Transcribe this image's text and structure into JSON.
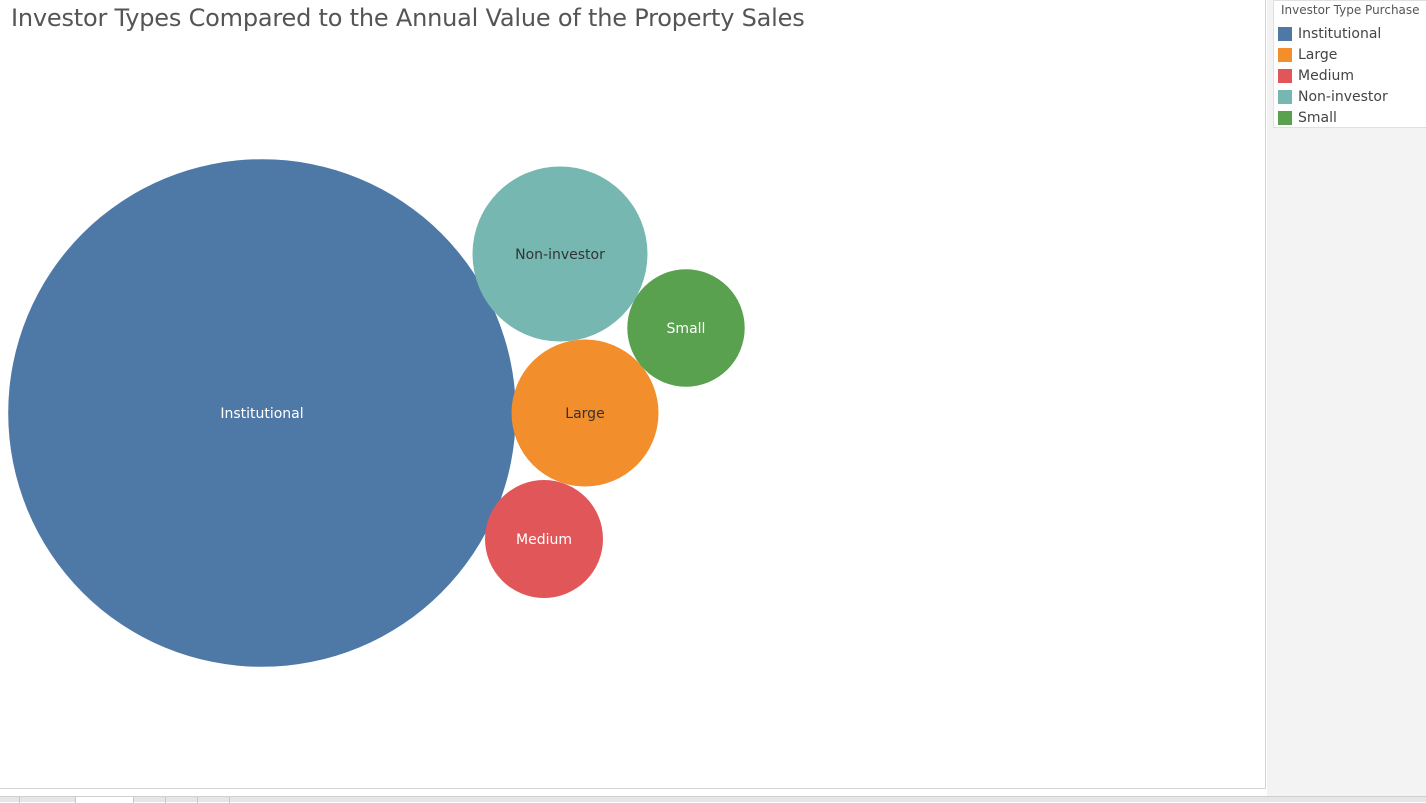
{
  "chart_data": {
    "type": "bubble",
    "title": "Investor Types Compared to the Annual Value of the Property Sales",
    "legend_title": "Investor Type Purchase",
    "legend_placement": "right",
    "series": [
      {
        "name": "Institutional",
        "color": "#4e79a7",
        "label_color": "#ffffff",
        "relative_size": 18.5
      },
      {
        "name": "Large",
        "color": "#f28e2b",
        "label_color": "#333333",
        "relative_size": 1.55
      },
      {
        "name": "Medium",
        "color": "#e15759",
        "label_color": "#ffffff",
        "relative_size": 1.0
      },
      {
        "name": "Non-investor",
        "color": "#76b7b2",
        "label_color": "#333333",
        "relative_size": 2.2
      },
      {
        "name": "Small",
        "color": "#59a14f",
        "label_color": "#ffffff",
        "relative_size": 0.99
      }
    ]
  },
  "sheet_tabs": [
    "",
    "",
    "",
    "",
    ""
  ]
}
